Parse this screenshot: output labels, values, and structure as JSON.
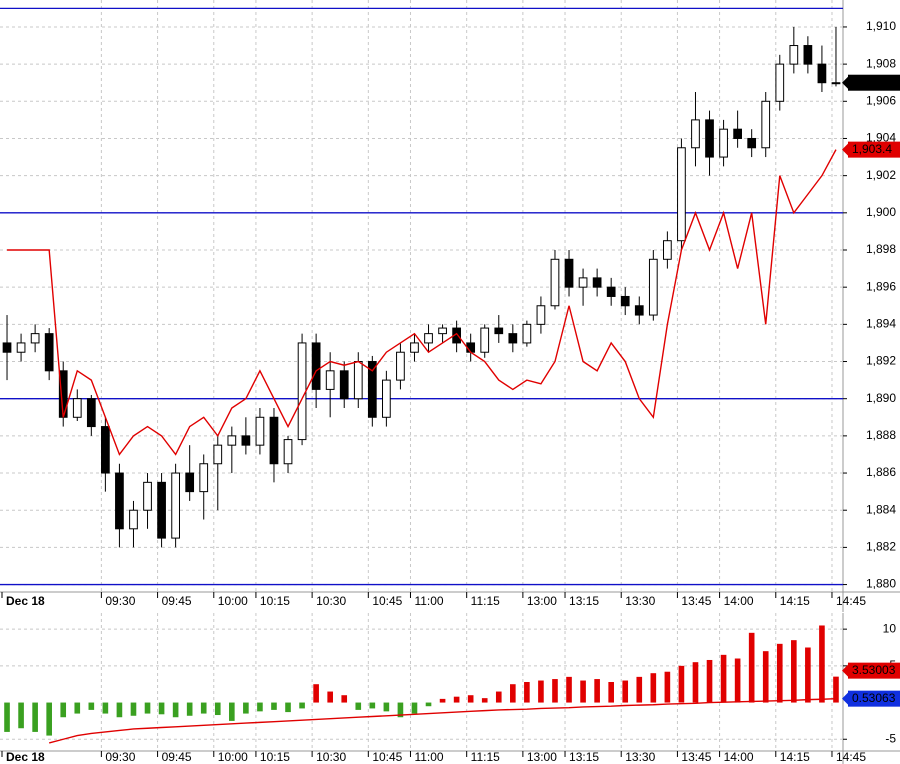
{
  "chart_data": [
    {
      "type": "candlestick",
      "categories": [
        "Dec 18",
        null,
        null,
        null,
        null,
        null,
        null,
        "09:30",
        null,
        null,
        null,
        "09:45",
        null,
        null,
        null,
        "10:00",
        null,
        null,
        "10:15",
        null,
        null,
        null,
        "10:30",
        null,
        null,
        null,
        "10:45",
        null,
        null,
        "11:00",
        null,
        null,
        null,
        "11:15",
        null,
        null,
        null,
        "13:00",
        null,
        null,
        "13:15",
        null,
        null,
        null,
        "13:30",
        null,
        null,
        null,
        "13:45",
        null,
        null,
        "14:00",
        null,
        null,
        null,
        "14:15",
        null,
        null,
        null,
        "14:45"
      ],
      "ylim": [
        1879.6,
        1911.45
      ],
      "yticks": [
        {
          "value": 1880,
          "label": "1,880"
        },
        {
          "value": 1882,
          "label": "1,882"
        },
        {
          "value": 1884,
          "label": "1,884"
        },
        {
          "value": 1886,
          "label": "1,886"
        },
        {
          "value": 1888,
          "label": "1,888"
        },
        {
          "value": 1890,
          "label": "1,890"
        },
        {
          "value": 1892,
          "label": "1,892"
        },
        {
          "value": 1894,
          "label": "1,894"
        },
        {
          "value": 1896,
          "label": "1,896"
        },
        {
          "value": 1898,
          "label": "1,898"
        },
        {
          "value": 1900,
          "label": "1,900"
        },
        {
          "value": 1902,
          "label": "1,902"
        },
        {
          "value": 1904,
          "label": "1,904"
        },
        {
          "value": 1906,
          "label": "1,906"
        },
        {
          "value": 1908,
          "label": "1,908"
        },
        {
          "value": 1910,
          "label": "1,910"
        }
      ],
      "grid": true,
      "hlines": [
        1880,
        1890,
        1900,
        1911
      ],
      "hline_color": "#1010c8",
      "series": [
        {
          "kind": "candle",
          "color": "#000000",
          "last_label": "1,907",
          "values": [
            [
              1893,
              1894.5,
              1891,
              1892.5
            ],
            [
              1892.5,
              1893.5,
              1892,
              1893
            ],
            [
              1893,
              1894,
              1892.5,
              1893.5
            ],
            [
              1893.5,
              1893.8,
              1891,
              1891.5
            ],
            [
              1891.5,
              1892,
              1888.5,
              1889
            ],
            [
              1889,
              1890.5,
              1888.8,
              1890
            ],
            [
              1890,
              1890.2,
              1888,
              1888.5
            ],
            [
              1888.5,
              1889,
              1885,
              1886
            ],
            [
              1886,
              1886.5,
              1882,
              1883
            ],
            [
              1883,
              1884.5,
              1882,
              1884
            ],
            [
              1884,
              1886,
              1883,
              1885.5
            ],
            [
              1885.5,
              1886,
              1882,
              1882.5
            ],
            [
              1882.5,
              1886.5,
              1882,
              1886
            ],
            [
              1886,
              1887.5,
              1884.5,
              1885
            ],
            [
              1885,
              1887,
              1883.5,
              1886.5
            ],
            [
              1886.5,
              1888,
              1884,
              1887.5
            ],
            [
              1887.5,
              1888.5,
              1886,
              1888
            ],
            [
              1888,
              1889,
              1887,
              1887.5
            ],
            [
              1887.5,
              1889.5,
              1887,
              1889
            ],
            [
              1889,
              1889.5,
              1885.5,
              1886.5
            ],
            [
              1886.5,
              1888,
              1886,
              1887.8
            ],
            [
              1887.8,
              1893.5,
              1887.5,
              1893
            ],
            [
              1893,
              1893.5,
              1889.5,
              1890.5
            ],
            [
              1890.5,
              1892.5,
              1889,
              1891.5
            ],
            [
              1891.5,
              1892,
              1889.5,
              1890
            ],
            [
              1890,
              1892.5,
              1889.5,
              1892
            ],
            [
              1892,
              1892.3,
              1888.5,
              1889
            ],
            [
              1889,
              1891.5,
              1888.5,
              1891
            ],
            [
              1891,
              1893,
              1890.5,
              1892.5
            ],
            [
              1892.5,
              1893.5,
              1892,
              1893
            ],
            [
              1893,
              1894,
              1892.5,
              1893.5
            ],
            [
              1893.5,
              1894,
              1893,
              1893.8
            ],
            [
              1893.8,
              1894.2,
              1892.5,
              1893
            ],
            [
              1893,
              1893.5,
              1892,
              1892.5
            ],
            [
              1892.5,
              1894,
              1892.2,
              1893.8
            ],
            [
              1893.8,
              1894.5,
              1893,
              1893.5
            ],
            [
              1893.5,
              1894,
              1892.5,
              1893
            ],
            [
              1893,
              1894.2,
              1892.8,
              1894
            ],
            [
              1894,
              1895.5,
              1893.5,
              1895
            ],
            [
              1895,
              1898,
              1894.8,
              1897.5
            ],
            [
              1897.5,
              1898,
              1895.5,
              1896
            ],
            [
              1896,
              1897,
              1895,
              1896.5
            ],
            [
              1896.5,
              1897,
              1895.5,
              1896
            ],
            [
              1896,
              1896.5,
              1895,
              1895.5
            ],
            [
              1895.5,
              1896,
              1894.5,
              1895
            ],
            [
              1895,
              1895.5,
              1894,
              1894.5
            ],
            [
              1894.5,
              1898,
              1894.2,
              1897.5
            ],
            [
              1897.5,
              1899,
              1897,
              1898.5
            ],
            [
              1898.5,
              1904,
              1898,
              1903.5
            ],
            [
              1903.5,
              1906.5,
              1902.5,
              1905
            ],
            [
              1905,
              1905.5,
              1902,
              1903
            ],
            [
              1903,
              1905,
              1902.5,
              1904.5
            ],
            [
              1904.5,
              1905.5,
              1903.5,
              1904
            ],
            [
              1904,
              1904.5,
              1903,
              1903.5
            ],
            [
              1903.5,
              1906.5,
              1903,
              1906
            ],
            [
              1906,
              1908.5,
              1905.5,
              1908
            ],
            [
              1908,
              1910,
              1907.5,
              1909
            ],
            [
              1909,
              1909.5,
              1907.5,
              1908
            ],
            [
              1908,
              1909,
              1906.5,
              1907
            ],
            [
              1907,
              1910,
              1906.8,
              1907
            ]
          ]
        },
        {
          "kind": "line",
          "color": "#e00000",
          "last_label": "1,903.4",
          "values": [
            1898,
            1898,
            1898,
            1898,
            1889,
            1891.5,
            1891,
            1889,
            1887,
            1888,
            1888.5,
            1888,
            1887,
            1888.5,
            1889,
            1888,
            1889.5,
            1890,
            1891.5,
            1890,
            1888.5,
            1890,
            1891.5,
            1892,
            1891.8,
            1892,
            1891.5,
            1892.5,
            1893,
            1893.5,
            1892.5,
            1893,
            1893.5,
            1892.5,
            1892,
            1891,
            1890.5,
            1891,
            1890.8,
            1892,
            1895,
            1892,
            1891.5,
            1893,
            1892,
            1890,
            1889,
            1894,
            1898,
            1900,
            1898,
            1900,
            1897,
            1900,
            1894,
            1902,
            1900,
            1901,
            1902,
            1903.4
          ]
        }
      ]
    },
    {
      "type": "histogram",
      "categories": [
        "Dec 18",
        null,
        null,
        null,
        null,
        null,
        null,
        "09:30",
        null,
        null,
        null,
        "09:45",
        null,
        null,
        null,
        "10:00",
        null,
        null,
        "10:15",
        null,
        null,
        null,
        "10:30",
        null,
        null,
        null,
        "10:45",
        null,
        null,
        "11:00",
        null,
        null,
        null,
        "11:15",
        null,
        null,
        null,
        "13:00",
        null,
        null,
        "13:15",
        null,
        null,
        null,
        "13:30",
        null,
        null,
        null,
        "13:45",
        null,
        null,
        "14:00",
        null,
        null,
        null,
        "14:15",
        null,
        null,
        null,
        "14:45"
      ],
      "ylim": [
        -6.6,
        12.2
      ],
      "yticks": [
        -5,
        5,
        10
      ],
      "grid": true,
      "series": [
        {
          "kind": "bar",
          "color": "#e00000",
          "negative_color": "#3aa020",
          "tag_color": "#e00000",
          "values": [
            -4,
            -3.5,
            -4,
            -4.5,
            -2,
            -1.5,
            -1,
            -1.5,
            -2,
            -1.8,
            -1.5,
            -1.6,
            -2,
            -1.8,
            -1.5,
            -1.7,
            -2.5,
            -1.5,
            -1.2,
            -1,
            -1.3,
            -0.8,
            2.5,
            1.5,
            1,
            -1,
            -0.8,
            -1.2,
            -2,
            -1.5,
            -0.5,
            0.5,
            0.8,
            1,
            0.6,
            1.5,
            2.5,
            2.8,
            3,
            3.2,
            3.5,
            3,
            3.2,
            2.8,
            3,
            3.5,
            4,
            4.2,
            5,
            5.5,
            5.8,
            6.5,
            6,
            9.5,
            7,
            8,
            8.5,
            7.5,
            10.5,
            3.53003
          ]
        },
        {
          "kind": "line",
          "color": "#e00000",
          "tag_color": "#1030e0",
          "values": [
            null,
            null,
            null,
            -5.5,
            -5,
            -4.5,
            -4.2,
            -4,
            -3.8,
            -3.6,
            -3.5,
            -3.4,
            -3.3,
            -3.2,
            -3.1,
            -3,
            -2.9,
            -2.8,
            -2.7,
            -2.6,
            -2.5,
            -2.4,
            -2.3,
            -2.2,
            -2.1,
            -2,
            -1.9,
            -1.8,
            -1.7,
            -1.6,
            -1.5,
            -1.4,
            -1.3,
            -1.2,
            -1.1,
            -1,
            -0.95,
            -0.9,
            -0.8,
            -0.75,
            -0.7,
            -0.6,
            -0.55,
            -0.5,
            -0.4,
            -0.35,
            -0.3,
            -0.2,
            -0.15,
            -0.1,
            0,
            0.05,
            0.1,
            0.15,
            0.2,
            0.25,
            0.3,
            0.4,
            0.45,
            0.53063
          ]
        }
      ]
    }
  ]
}
